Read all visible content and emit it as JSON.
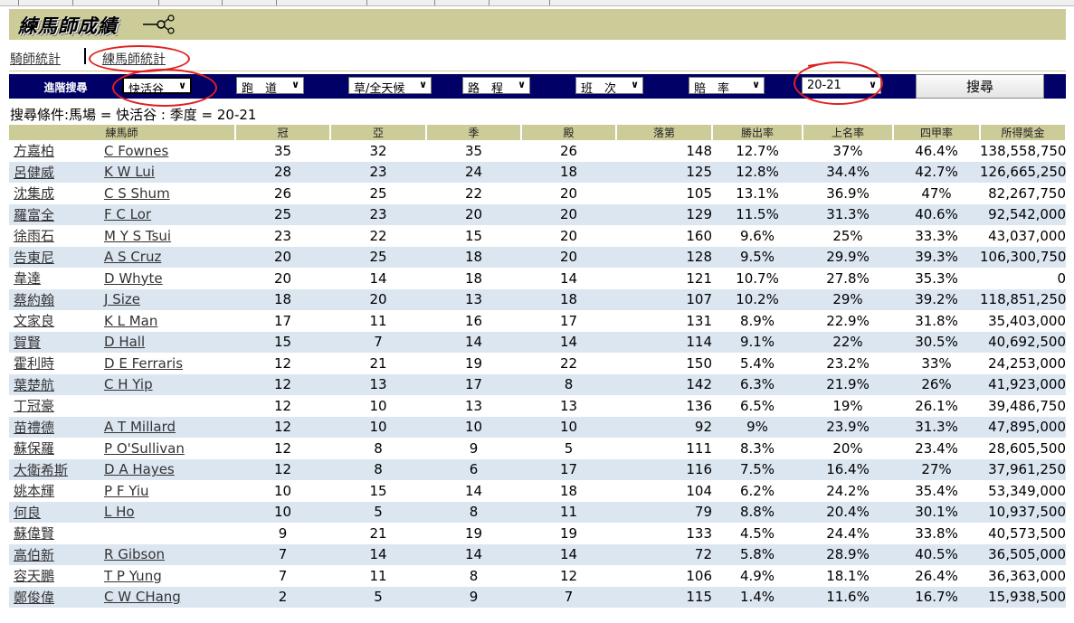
{
  "header": {
    "title": "練馬師成績",
    "share_icon": "share-icon"
  },
  "tabs": [
    {
      "label": "騎師統計"
    },
    {
      "label": "練馬師統計"
    }
  ],
  "search": {
    "advanced_label": "進階搜尋",
    "filters": [
      {
        "name": "venue",
        "value": "快活谷"
      },
      {
        "name": "track",
        "value": "跑　道"
      },
      {
        "name": "surface",
        "value": "草/全天候"
      },
      {
        "name": "distance",
        "value": "路　程"
      },
      {
        "name": "class",
        "value": "班　次"
      },
      {
        "name": "odds",
        "value": "賠　率"
      },
      {
        "name": "season",
        "value": "20-21"
      }
    ],
    "button_label": "搜尋",
    "condition_text": "搜尋條件:馬場 = 快活谷 : 季度 = 20-21"
  },
  "table": {
    "headers": [
      "練馬師",
      "冠",
      "亞",
      "季",
      "殿",
      "落第",
      "勝出率",
      "上名率",
      "四甲率",
      "所得獎金"
    ],
    "rows": [
      {
        "cn": "方嘉柏",
        "en": "C Fownes",
        "w": "35",
        "s": "32",
        "t": "35",
        "f": "26",
        "u": "148",
        "win": "12.7%",
        "place": "37%",
        "top4": "46.4%",
        "prize": "138,558,750"
      },
      {
        "cn": "呂健威",
        "en": "K W Lui",
        "w": "28",
        "s": "23",
        "t": "24",
        "f": "18",
        "u": "125",
        "win": "12.8%",
        "place": "34.4%",
        "top4": "42.7%",
        "prize": "126,665,250"
      },
      {
        "cn": "沈集成",
        "en": "C S Shum",
        "w": "26",
        "s": "25",
        "t": "22",
        "f": "20",
        "u": "105",
        "win": "13.1%",
        "place": "36.9%",
        "top4": "47%",
        "prize": "82,267,750"
      },
      {
        "cn": "羅富全",
        "en": "F C Lor",
        "w": "25",
        "s": "23",
        "t": "20",
        "f": "20",
        "u": "129",
        "win": "11.5%",
        "place": "31.3%",
        "top4": "40.6%",
        "prize": "92,542,000"
      },
      {
        "cn": "徐雨石",
        "en": "M Y S Tsui",
        "w": "23",
        "s": "22",
        "t": "15",
        "f": "20",
        "u": "160",
        "win": "9.6%",
        "place": "25%",
        "top4": "33.3%",
        "prize": "43,037,000"
      },
      {
        "cn": "告東尼",
        "en": "A S Cruz",
        "w": "20",
        "s": "25",
        "t": "18",
        "f": "20",
        "u": "128",
        "win": "9.5%",
        "place": "29.9%",
        "top4": "39.3%",
        "prize": "106,300,750"
      },
      {
        "cn": "韋達",
        "en": "D Whyte",
        "w": "20",
        "s": "14",
        "t": "18",
        "f": "14",
        "u": "121",
        "win": "10.7%",
        "place": "27.8%",
        "top4": "35.3%",
        "prize": "0"
      },
      {
        "cn": "蔡約翰",
        "en": "J Size",
        "w": "18",
        "s": "20",
        "t": "13",
        "f": "18",
        "u": "107",
        "win": "10.2%",
        "place": "29%",
        "top4": "39.2%",
        "prize": "118,851,250"
      },
      {
        "cn": "文家良",
        "en": "K L Man",
        "w": "17",
        "s": "11",
        "t": "16",
        "f": "17",
        "u": "131",
        "win": "8.9%",
        "place": "22.9%",
        "top4": "31.8%",
        "prize": "35,403,000"
      },
      {
        "cn": "賀賢",
        "en": "D Hall",
        "w": "15",
        "s": "7",
        "t": "14",
        "f": "14",
        "u": "114",
        "win": "9.1%",
        "place": "22%",
        "top4": "30.5%",
        "prize": "40,692,500"
      },
      {
        "cn": "霍利時",
        "en": "D E Ferraris",
        "w": "12",
        "s": "21",
        "t": "19",
        "f": "22",
        "u": "150",
        "win": "5.4%",
        "place": "23.2%",
        "top4": "33%",
        "prize": "24,253,000"
      },
      {
        "cn": "葉楚航",
        "en": "C H Yip",
        "w": "12",
        "s": "13",
        "t": "17",
        "f": "8",
        "u": "142",
        "win": "6.3%",
        "place": "21.9%",
        "top4": "26%",
        "prize": "41,923,000"
      },
      {
        "cn": "丁冠豪",
        "en": "",
        "w": "12",
        "s": "10",
        "t": "13",
        "f": "13",
        "u": "136",
        "win": "6.5%",
        "place": "19%",
        "top4": "26.1%",
        "prize": "39,486,750"
      },
      {
        "cn": "苗禮德",
        "en": "A T Millard",
        "w": "12",
        "s": "10",
        "t": "10",
        "f": "10",
        "u": "92",
        "win": "9%",
        "place": "23.9%",
        "top4": "31.3%",
        "prize": "47,895,000"
      },
      {
        "cn": "蘇保羅",
        "en": "P O'Sullivan",
        "w": "12",
        "s": "8",
        "t": "9",
        "f": "5",
        "u": "111",
        "win": "8.3%",
        "place": "20%",
        "top4": "23.4%",
        "prize": "28,605,500"
      },
      {
        "cn": "大衛希斯",
        "en": "D A Hayes",
        "w": "12",
        "s": "8",
        "t": "6",
        "f": "17",
        "u": "116",
        "win": "7.5%",
        "place": "16.4%",
        "top4": "27%",
        "prize": "37,961,250"
      },
      {
        "cn": "姚本輝",
        "en": "P F Yiu",
        "w": "10",
        "s": "15",
        "t": "14",
        "f": "18",
        "u": "104",
        "win": "6.2%",
        "place": "24.2%",
        "top4": "35.4%",
        "prize": "53,349,000"
      },
      {
        "cn": "何良",
        "en": "L Ho",
        "w": "10",
        "s": "5",
        "t": "8",
        "f": "11",
        "u": "79",
        "win": "8.8%",
        "place": "20.4%",
        "top4": "30.1%",
        "prize": "10,937,500"
      },
      {
        "cn": "蘇偉賢",
        "en": "",
        "w": "9",
        "s": "21",
        "t": "19",
        "f": "19",
        "u": "133",
        "win": "4.5%",
        "place": "24.4%",
        "top4": "33.8%",
        "prize": "40,573,500"
      },
      {
        "cn": "高伯新",
        "en": "R Gibson",
        "w": "7",
        "s": "14",
        "t": "14",
        "f": "14",
        "u": "72",
        "win": "5.8%",
        "place": "28.9%",
        "top4": "40.5%",
        "prize": "36,505,000"
      },
      {
        "cn": "容天鵬",
        "en": "T P Yung",
        "w": "7",
        "s": "11",
        "t": "8",
        "f": "12",
        "u": "106",
        "win": "4.9%",
        "place": "18.1%",
        "top4": "26.4%",
        "prize": "36,363,000"
      },
      {
        "cn": "鄭俊偉",
        "en": "C W CHang",
        "w": "2",
        "s": "5",
        "t": "9",
        "f": "7",
        "u": "115",
        "win": "1.4%",
        "place": "11.6%",
        "top4": "16.7%",
        "prize": "15,938,500"
      }
    ]
  },
  "colors": {
    "title_bar": "#cccc99",
    "search_bar": "#000066",
    "row_alt": "#dce6f1",
    "annotation": "#e02020"
  }
}
